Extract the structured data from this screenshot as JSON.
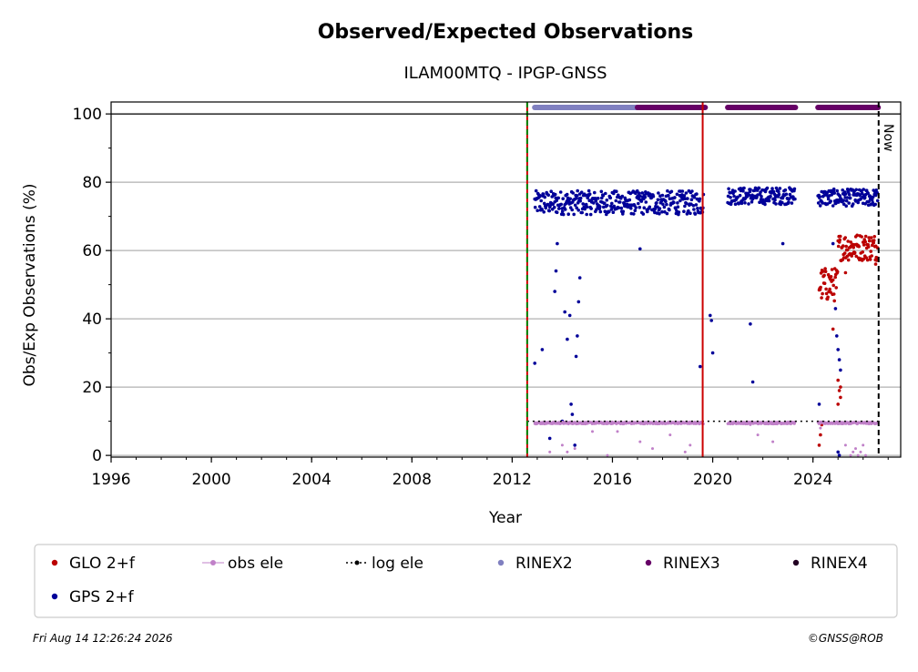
{
  "chart_data": {
    "type": "scatter",
    "title": "Observed/Expected Observations",
    "subtitle": "ILAM00MTQ - IPGP-GNSS",
    "xlabel": "Year",
    "ylabel": "Obs/Exp Observations (%)",
    "xlim": [
      1996,
      2027.5
    ],
    "ylim": [
      -0.5,
      103.5
    ],
    "x_ticks": [
      1996,
      2000,
      2004,
      2008,
      2012,
      2016,
      2020,
      2024
    ],
    "y_ticks": [
      0,
      20,
      40,
      60,
      80,
      100
    ],
    "grid": "horizontal",
    "now_label": "Now",
    "now_year": 2026.62,
    "vlines": [
      {
        "x": 2012.6,
        "color": "#cc0000",
        "style": "solid"
      },
      {
        "x": 2012.6,
        "color": "#008800",
        "style": "dashed"
      },
      {
        "x": 2019.6,
        "color": "#cc0000",
        "style": "solid"
      },
      {
        "x": 2026.62,
        "color": "#000000",
        "style": "dashed"
      }
    ],
    "rinex_bars": [
      {
        "series": "RINEX2",
        "color": "#8080c0",
        "x": [
          2012.9,
          2017.0
        ]
      },
      {
        "series": "RINEX3",
        "color": "#660066",
        "x": [
          2017.0,
          2019.7
        ]
      },
      {
        "series": "RINEX3",
        "color": "#660066",
        "x": [
          2020.6,
          2023.3
        ]
      },
      {
        "series": "RINEX3",
        "color": "#660066",
        "x": [
          2024.2,
          2026.6
        ]
      }
    ],
    "series": [
      {
        "name": "GPS 2+f",
        "color": "#000099",
        "segments": [
          {
            "x": [
              2012.9,
              2019.65
            ],
            "base": 74,
            "spread": 3.5
          },
          {
            "x": [
              2020.6,
              2023.3
            ],
            "base": 76,
            "spread": 2.5
          },
          {
            "x": [
              2024.2,
              2026.6
            ],
            "base": 75.5,
            "spread": 2.5
          }
        ],
        "outliers": [
          [
            2012.9,
            27
          ],
          [
            2013.2,
            31
          ],
          [
            2013.5,
            5
          ],
          [
            2013.7,
            48
          ],
          [
            2013.75,
            54
          ],
          [
            2013.8,
            62
          ],
          [
            2014.0,
            10
          ],
          [
            2014.1,
            42
          ],
          [
            2014.2,
            34
          ],
          [
            2014.3,
            41
          ],
          [
            2014.35,
            15
          ],
          [
            2014.4,
            12
          ],
          [
            2014.5,
            3
          ],
          [
            2014.55,
            29
          ],
          [
            2014.6,
            35
          ],
          [
            2014.65,
            45
          ],
          [
            2014.7,
            52
          ],
          [
            2017.1,
            60.5
          ],
          [
            2019.5,
            26
          ],
          [
            2019.9,
            41
          ],
          [
            2019.95,
            39.5
          ],
          [
            2020.0,
            30
          ],
          [
            2021.5,
            38.5
          ],
          [
            2021.6,
            21.5
          ],
          [
            2022.8,
            62
          ],
          [
            2024.25,
            15
          ],
          [
            2024.8,
            62
          ],
          [
            2024.9,
            43
          ],
          [
            2024.95,
            35
          ],
          [
            2025.0,
            31
          ],
          [
            2025.05,
            28
          ],
          [
            2025.1,
            25
          ],
          [
            2025.0,
            1
          ],
          [
            2025.05,
            0
          ]
        ]
      },
      {
        "name": "GLO 2+f",
        "color": "#bb0000",
        "segments": [
          {
            "x": [
              2024.25,
              2025.0
            ],
            "base": 50,
            "spread": 5
          },
          {
            "x": [
              2025.0,
              2026.6
            ],
            "base": 61,
            "spread": 4
          }
        ],
        "outliers": [
          [
            2024.25,
            3
          ],
          [
            2024.3,
            6
          ],
          [
            2024.35,
            9
          ],
          [
            2024.8,
            37
          ],
          [
            2025.0,
            22
          ],
          [
            2025.05,
            19
          ],
          [
            2025.1,
            17
          ],
          [
            2025.0,
            15
          ],
          [
            2025.1,
            20
          ],
          [
            2025.3,
            53.5
          ],
          [
            2026.5,
            56
          ]
        ]
      },
      {
        "name": "obs ele",
        "color": "#c080c8",
        "segments": [
          {
            "x": [
              2012.9,
              2019.65
            ],
            "base": 9.5,
            "spread": 0.3
          },
          {
            "x": [
              2020.6,
              2023.3
            ],
            "base": 9.5,
            "spread": 0.3
          },
          {
            "x": [
              2024.2,
              2026.6
            ],
            "base": 9.5,
            "spread": 0.3
          }
        ],
        "outliers": [
          [
            2013.5,
            1
          ],
          [
            2014.0,
            3
          ],
          [
            2014.2,
            1
          ],
          [
            2014.5,
            2
          ],
          [
            2015.2,
            7
          ],
          [
            2015.8,
            0
          ],
          [
            2016.2,
            7
          ],
          [
            2017.1,
            4
          ],
          [
            2017.6,
            2
          ],
          [
            2018.3,
            6
          ],
          [
            2018.9,
            1
          ],
          [
            2019.1,
            3
          ],
          [
            2021.5,
            9
          ],
          [
            2021.8,
            6
          ],
          [
            2022.4,
            4
          ],
          [
            2024.3,
            8
          ],
          [
            2025.3,
            3
          ],
          [
            2025.5,
            0
          ],
          [
            2025.6,
            1
          ],
          [
            2025.7,
            2
          ],
          [
            2025.8,
            0
          ],
          [
            2025.9,
            1
          ],
          [
            2026.0,
            3
          ],
          [
            2026.1,
            0
          ]
        ]
      },
      {
        "name": "log ele",
        "color": "#000000",
        "line": "dotted",
        "x": [
          2012.6,
          2026.62
        ],
        "y": [
          10,
          10
        ]
      }
    ],
    "legend": [
      "GLO 2+f",
      "obs ele",
      "log ele",
      "RINEX2",
      "RINEX3",
      "RINEX4",
      "GPS 2+f"
    ],
    "legend_colors": {
      "GLO 2+f": "#bb0000",
      "obs ele": "#c080c8",
      "log ele": "#000000",
      "RINEX2": "#8080c0",
      "RINEX3": "#660066",
      "RINEX4": "#220022",
      "GPS 2+f": "#000099"
    },
    "legend_placement": "bottom"
  },
  "footer": {
    "timestamp": "Fri Aug 14 12:26:24 2026",
    "credit": "©GNSS@ROB"
  }
}
